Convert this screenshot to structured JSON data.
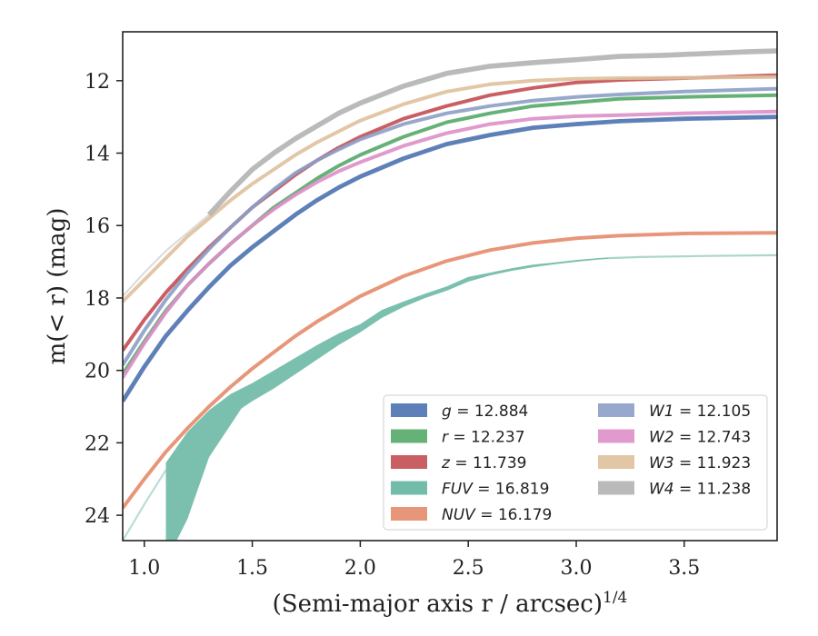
{
  "chart_data": {
    "type": "line",
    "title": "",
    "xlabel": "(Semi-major axis r / arcsec)",
    "xlabel_exponent": "1/4",
    "ylabel": "m(< r) (mag)",
    "xlim": [
      0.9,
      3.93
    ],
    "ylim": [
      24.7,
      10.65
    ],
    "y_inverted": true,
    "grid": false,
    "legend_position": "lower-right",
    "x_ticks": [
      "1.0",
      "1.5",
      "2.0",
      "2.5",
      "3.0",
      "3.5"
    ],
    "x_tick_values": [
      1.0,
      1.5,
      2.0,
      2.5,
      3.0,
      3.5
    ],
    "y_ticks": [
      "12",
      "14",
      "16",
      "18",
      "20",
      "22",
      "24"
    ],
    "y_tick_values": [
      12,
      14,
      16,
      18,
      20,
      22,
      24
    ],
    "series": [
      {
        "band": "g",
        "value": "12.884",
        "color": "#4c72b0",
        "band_width": 0.12,
        "points": [
          [
            0.9,
            20.85
          ],
          [
            1.0,
            19.9
          ],
          [
            1.1,
            19.05
          ],
          [
            1.2,
            18.35
          ],
          [
            1.3,
            17.7
          ],
          [
            1.4,
            17.1
          ],
          [
            1.5,
            16.6
          ],
          [
            1.6,
            16.15
          ],
          [
            1.7,
            15.7
          ],
          [
            1.8,
            15.3
          ],
          [
            1.9,
            14.95
          ],
          [
            2.0,
            14.65
          ],
          [
            2.2,
            14.15
          ],
          [
            2.4,
            13.75
          ],
          [
            2.6,
            13.5
          ],
          [
            2.8,
            13.3
          ],
          [
            3.0,
            13.2
          ],
          [
            3.2,
            13.12
          ],
          [
            3.5,
            13.05
          ],
          [
            3.93,
            13.0
          ]
        ]
      },
      {
        "band": "r",
        "value": "12.237",
        "color": "#55a868",
        "band_width": 0.1,
        "points": [
          [
            0.9,
            20.1
          ],
          [
            1.0,
            19.2
          ],
          [
            1.1,
            18.35
          ],
          [
            1.2,
            17.65
          ],
          [
            1.3,
            17.05
          ],
          [
            1.4,
            16.5
          ],
          [
            1.5,
            16.0
          ],
          [
            1.6,
            15.5
          ],
          [
            1.7,
            15.1
          ],
          [
            1.8,
            14.7
          ],
          [
            1.9,
            14.35
          ],
          [
            2.0,
            14.05
          ],
          [
            2.2,
            13.55
          ],
          [
            2.4,
            13.15
          ],
          [
            2.6,
            12.9
          ],
          [
            2.8,
            12.7
          ],
          [
            3.0,
            12.6
          ],
          [
            3.2,
            12.5
          ],
          [
            3.5,
            12.45
          ],
          [
            3.93,
            12.4
          ]
        ]
      },
      {
        "band": "z",
        "value": "11.739",
        "color": "#c44e52",
        "band_width": 0.1,
        "points": [
          [
            0.9,
            19.45
          ],
          [
            1.0,
            18.6
          ],
          [
            1.1,
            17.85
          ],
          [
            1.2,
            17.2
          ],
          [
            1.3,
            16.6
          ],
          [
            1.4,
            16.05
          ],
          [
            1.5,
            15.5
          ],
          [
            1.6,
            15.05
          ],
          [
            1.7,
            14.6
          ],
          [
            1.8,
            14.2
          ],
          [
            1.9,
            13.85
          ],
          [
            2.0,
            13.55
          ],
          [
            2.2,
            13.05
          ],
          [
            2.4,
            12.7
          ],
          [
            2.6,
            12.4
          ],
          [
            2.8,
            12.2
          ],
          [
            3.0,
            12.05
          ],
          [
            3.2,
            11.98
          ],
          [
            3.5,
            11.93
          ],
          [
            3.93,
            11.85
          ]
        ]
      },
      {
        "band": "FUV",
        "value": "16.819",
        "color": "#64b5a0",
        "band_width": 0.12,
        "extrapolated_after": 3.15,
        "points": [
          [
            1.1,
            22.75
          ],
          [
            1.2,
            21.95
          ],
          [
            1.3,
            21.35
          ],
          [
            1.4,
            20.85
          ],
          [
            1.5,
            20.45
          ],
          [
            1.6,
            20.1
          ],
          [
            1.7,
            19.8
          ],
          [
            1.8,
            19.5
          ],
          [
            1.9,
            19.15
          ],
          [
            2.0,
            18.85
          ],
          [
            2.1,
            18.45
          ],
          [
            2.2,
            18.2
          ],
          [
            2.3,
            17.95
          ],
          [
            2.4,
            17.75
          ],
          [
            2.5,
            17.5
          ],
          [
            2.6,
            17.35
          ],
          [
            2.7,
            17.22
          ],
          [
            2.8,
            17.12
          ],
          [
            2.9,
            17.05
          ],
          [
            3.0,
            16.98
          ],
          [
            3.1,
            16.92
          ],
          [
            3.15,
            16.9
          ],
          [
            3.3,
            16.87
          ],
          [
            3.6,
            16.84
          ],
          [
            3.93,
            16.82
          ]
        ],
        "band_lower": [
          [
            1.1,
            24.7
          ],
          [
            1.15,
            24.7
          ],
          [
            1.2,
            24.1
          ],
          [
            1.3,
            22.4
          ],
          [
            1.45,
            21.05
          ],
          [
            1.5,
            20.85
          ],
          [
            1.6,
            20.5
          ],
          [
            1.7,
            20.1
          ],
          [
            1.8,
            19.7
          ],
          [
            1.9,
            19.3
          ],
          [
            2.0,
            18.95
          ],
          [
            2.1,
            18.55
          ],
          [
            2.2,
            18.25
          ],
          [
            2.3,
            18.0
          ],
          [
            2.4,
            17.8
          ],
          [
            2.5,
            17.55
          ],
          [
            2.6,
            17.38
          ],
          [
            2.7,
            17.25
          ],
          [
            2.8,
            17.15
          ],
          [
            2.9,
            17.07
          ],
          [
            3.0,
            17.0
          ],
          [
            3.1,
            16.94
          ],
          [
            3.15,
            16.92
          ]
        ],
        "band_upper": [
          [
            1.1,
            22.55
          ],
          [
            1.2,
            21.7
          ],
          [
            1.3,
            21.1
          ],
          [
            1.4,
            20.65
          ],
          [
            1.5,
            20.35
          ],
          [
            1.6,
            20.0
          ],
          [
            1.7,
            19.65
          ],
          [
            1.8,
            19.3
          ],
          [
            1.9,
            18.98
          ],
          [
            2.0,
            18.72
          ],
          [
            2.1,
            18.33
          ],
          [
            2.2,
            18.1
          ],
          [
            2.3,
            17.88
          ],
          [
            2.4,
            17.68
          ],
          [
            2.5,
            17.42
          ],
          [
            2.6,
            17.3
          ],
          [
            2.7,
            17.18
          ],
          [
            2.8,
            17.08
          ],
          [
            2.9,
            17.02
          ],
          [
            3.0,
            16.95
          ],
          [
            3.1,
            16.9
          ],
          [
            3.15,
            16.88
          ]
        ],
        "extrapolation": [
          [
            0.9,
            24.7
          ],
          [
            1.0,
            23.7
          ],
          [
            1.1,
            22.75
          ]
        ]
      },
      {
        "band": "NUV",
        "value": "16.179",
        "color": "#e48b6a",
        "band_width": 0.1,
        "points": [
          [
            0.9,
            23.8
          ],
          [
            1.0,
            23.0
          ],
          [
            1.1,
            22.25
          ],
          [
            1.2,
            21.6
          ],
          [
            1.3,
            21.0
          ],
          [
            1.4,
            20.45
          ],
          [
            1.5,
            19.95
          ],
          [
            1.6,
            19.5
          ],
          [
            1.7,
            19.05
          ],
          [
            1.8,
            18.65
          ],
          [
            1.9,
            18.3
          ],
          [
            2.0,
            17.95
          ],
          [
            2.2,
            17.4
          ],
          [
            2.4,
            16.98
          ],
          [
            2.6,
            16.68
          ],
          [
            2.8,
            16.48
          ],
          [
            3.0,
            16.35
          ],
          [
            3.2,
            16.28
          ],
          [
            3.5,
            16.22
          ],
          [
            3.93,
            16.2
          ]
        ]
      },
      {
        "band": "W1",
        "value": "12.105",
        "color": "#8c9fc6",
        "band_width": 0.1,
        "points": [
          [
            0.9,
            19.85
          ],
          [
            1.0,
            18.9
          ],
          [
            1.1,
            18.05
          ],
          [
            1.2,
            17.3
          ],
          [
            1.3,
            16.65
          ],
          [
            1.4,
            16.05
          ],
          [
            1.5,
            15.5
          ],
          [
            1.6,
            15.0
          ],
          [
            1.7,
            14.55
          ],
          [
            1.8,
            14.2
          ],
          [
            1.9,
            13.9
          ],
          [
            2.0,
            13.62
          ],
          [
            2.2,
            13.2
          ],
          [
            2.4,
            12.9
          ],
          [
            2.6,
            12.7
          ],
          [
            2.8,
            12.55
          ],
          [
            3.0,
            12.45
          ],
          [
            3.2,
            12.38
          ],
          [
            3.5,
            12.3
          ],
          [
            3.93,
            12.22
          ]
        ]
      },
      {
        "band": "W2",
        "value": "12.743",
        "color": "#dd8fc8",
        "band_width": 0.1,
        "points": [
          [
            0.9,
            20.2
          ],
          [
            1.0,
            19.25
          ],
          [
            1.1,
            18.4
          ],
          [
            1.2,
            17.65
          ],
          [
            1.3,
            17.05
          ],
          [
            1.4,
            16.5
          ],
          [
            1.5,
            16.0
          ],
          [
            1.6,
            15.55
          ],
          [
            1.7,
            15.15
          ],
          [
            1.8,
            14.8
          ],
          [
            1.9,
            14.5
          ],
          [
            2.0,
            14.25
          ],
          [
            2.2,
            13.8
          ],
          [
            2.4,
            13.45
          ],
          [
            2.6,
            13.2
          ],
          [
            2.8,
            13.05
          ],
          [
            3.0,
            12.98
          ],
          [
            3.2,
            12.95
          ],
          [
            3.5,
            12.9
          ],
          [
            3.93,
            12.85
          ]
        ]
      },
      {
        "band": "W3",
        "value": "11.923",
        "color": "#dec19c",
        "band_width": 0.1,
        "points": [
          [
            0.9,
            18.1
          ],
          [
            1.0,
            17.5
          ],
          [
            1.1,
            16.9
          ],
          [
            1.2,
            16.3
          ],
          [
            1.3,
            15.8
          ],
          [
            1.4,
            15.3
          ],
          [
            1.5,
            14.85
          ],
          [
            1.6,
            14.45
          ],
          [
            1.7,
            14.05
          ],
          [
            1.8,
            13.7
          ],
          [
            1.9,
            13.4
          ],
          [
            2.0,
            13.1
          ],
          [
            2.2,
            12.65
          ],
          [
            2.4,
            12.3
          ],
          [
            2.6,
            12.1
          ],
          [
            2.8,
            12.0
          ],
          [
            3.0,
            11.95
          ],
          [
            3.2,
            11.93
          ],
          [
            3.5,
            11.92
          ],
          [
            3.93,
            11.9
          ]
        ]
      },
      {
        "band": "W4",
        "value": "11.238",
        "color": "#b3b3b3",
        "band_width": 0.14,
        "points": [
          [
            1.3,
            15.7
          ],
          [
            1.4,
            15.05
          ],
          [
            1.5,
            14.45
          ],
          [
            1.6,
            14.0
          ],
          [
            1.7,
            13.6
          ],
          [
            1.8,
            13.25
          ],
          [
            1.9,
            12.9
          ],
          [
            2.0,
            12.62
          ],
          [
            2.2,
            12.15
          ],
          [
            2.4,
            11.8
          ],
          [
            2.6,
            11.6
          ],
          [
            2.8,
            11.5
          ],
          [
            3.0,
            11.42
          ],
          [
            3.2,
            11.33
          ],
          [
            3.4,
            11.3
          ],
          [
            3.6,
            11.25
          ],
          [
            3.8,
            11.2
          ],
          [
            3.93,
            11.18
          ]
        ],
        "extrapolation": [
          [
            0.9,
            17.95
          ],
          [
            1.0,
            17.3
          ],
          [
            1.1,
            16.7
          ],
          [
            1.2,
            16.2
          ],
          [
            1.3,
            15.7
          ]
        ]
      }
    ],
    "legend": [
      {
        "name": "g",
        "value": "12.884",
        "column": 0
      },
      {
        "name": "r",
        "value": "12.237",
        "column": 0
      },
      {
        "name": "z",
        "value": "11.739",
        "column": 0
      },
      {
        "name": "FUV",
        "value": "16.819",
        "column": 0
      },
      {
        "name": "NUV",
        "value": "16.179",
        "column": 0
      },
      {
        "name": "W1",
        "value": "12.105",
        "column": 1
      },
      {
        "name": "W2",
        "value": "12.743",
        "column": 1
      },
      {
        "name": "W3",
        "value": "11.923",
        "column": 1
      },
      {
        "name": "W4",
        "value": "11.238",
        "column": 1
      }
    ]
  }
}
